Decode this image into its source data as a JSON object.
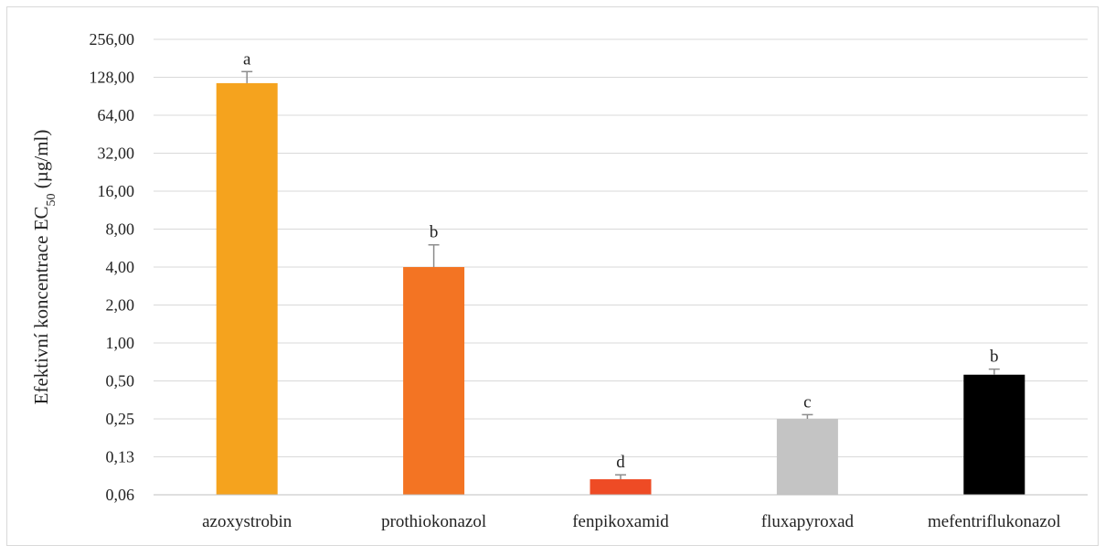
{
  "chart_data": {
    "type": "bar",
    "title": "",
    "ylabel": {
      "main": "Efektivní koncentrace EC",
      "subscript": "50",
      "unit": " (µg/ml)"
    },
    "xlabel": "",
    "y_scale": "log2",
    "ylim": [
      0.0625,
      256
    ],
    "y_ticks": [
      0.0625,
      0.125,
      0.25,
      0.5,
      1,
      2,
      4,
      8,
      16,
      32,
      64,
      128,
      256
    ],
    "y_tick_labels": [
      "0,06",
      "0,13",
      "0,25",
      "0,50",
      "1,00",
      "2,00",
      "4,00",
      "8,00",
      "16,00",
      "32,00",
      "64,00",
      "128,00",
      "256,00"
    ],
    "grid": true,
    "categories": [
      "azoxystrobin",
      "prothiokonazol",
      "fenpikoxamid",
      "fluxapyroxad",
      "mefentriflukonazol"
    ],
    "values": [
      115,
      4.0,
      0.083,
      0.25,
      0.56
    ],
    "error_upper": [
      142,
      6.0,
      0.09,
      0.27,
      0.62
    ],
    "significance_labels": [
      "a",
      "b",
      "d",
      "c",
      "b"
    ],
    "colors": [
      "#F5A31E",
      "#F37423",
      "#EE4B25",
      "#C4C4C4",
      "#000000"
    ]
  }
}
